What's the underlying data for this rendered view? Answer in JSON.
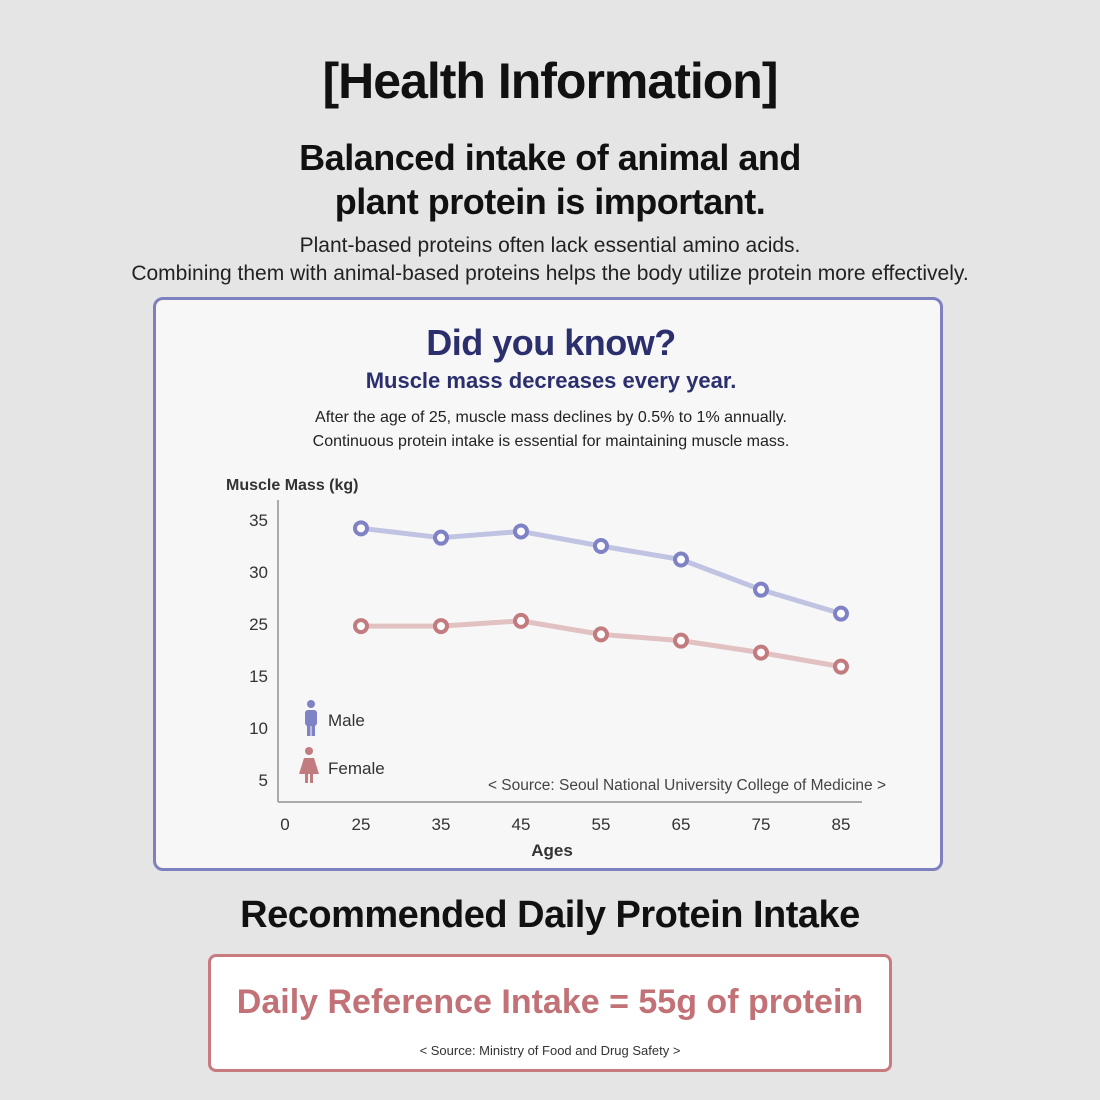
{
  "header": {
    "title": "[Health Information]",
    "headline_line1": "Balanced intake of animal and",
    "headline_line2": "plant protein is important.",
    "intro_line1": "Plant-based proteins often lack essential amino acids.",
    "intro_line2": "Combining them with animal-based proteins helps the body utilize protein more effectively."
  },
  "card": {
    "title": "Did you know?",
    "subtitle": "Muscle mass decreases every year.",
    "body_line1": "After the age of 25, muscle mass declines by 0.5% to 1% annually.",
    "body_line2": "Continuous protein intake is essential for maintaining muscle mass."
  },
  "chart_data": {
    "type": "line",
    "ylabel": "Muscle Mass (kg)",
    "xlabel": "Ages",
    "x_tick_labels": [
      "0",
      "25",
      "35",
      "45",
      "55",
      "65",
      "75",
      "85"
    ],
    "y_tick_labels": [
      "5",
      "10",
      "15",
      "25",
      "30",
      "35"
    ],
    "categories": [
      "25",
      "35",
      "45",
      "55",
      "65",
      "75",
      "85"
    ],
    "series": [
      {
        "name": "Male",
        "values": [
          34.2,
          33.3,
          33.9,
          32.5,
          31.2,
          28.3,
          26.0
        ],
        "color": "#7f82c5",
        "line_color": "#c0c3e2",
        "icon": "male-person-icon"
      },
      {
        "name": "Female",
        "values": [
          24.6,
          24.6,
          25.3,
          23.0,
          21.8,
          19.5,
          16.8
        ],
        "color": "#c27b7f",
        "line_color": "#e1c1c2",
        "icon": "female-person-icon"
      }
    ],
    "legend_position": "bottom-left",
    "grid": false,
    "source": "< Source: Seoul National University College of Medicine >"
  },
  "daily": {
    "heading": "Recommended Daily Protein Intake",
    "intake": "Daily Reference Intake = 55g of protein",
    "source": "< Source: Ministry of Food and Drug Safety >"
  },
  "colors": {
    "background": "#e5e5e5",
    "card_border": "#7f80c0",
    "card_title": "#2b2f6e",
    "intake_border": "#c87b7f",
    "intake_text": "#c27277"
  }
}
